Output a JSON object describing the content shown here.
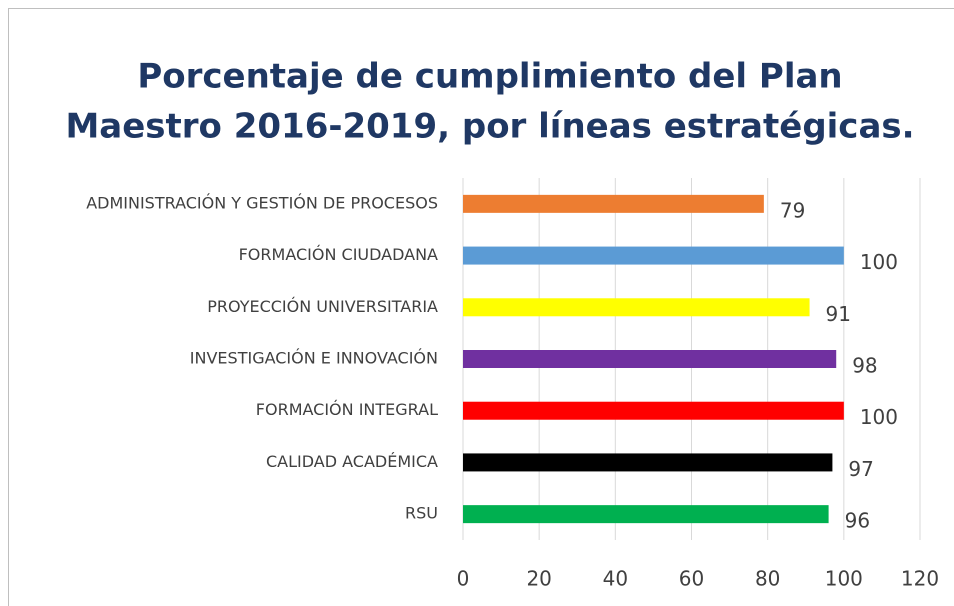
{
  "chart_data": {
    "type": "bar",
    "orientation": "horizontal",
    "title": [
      "Porcentaje de cumplimiento del Plan",
      "Maestro 2016-2019, por líneas estratégicas."
    ],
    "categories": [
      "ADMINISTRACIÓN Y GESTIÓN DE PROCESOS",
      "FORMACIÓN CIUDADANA",
      "PROYECCIÓN UNIVERSITARIA",
      "INVESTIGACIÓN E INNOVACIÓN",
      "FORMACIÓN INTEGRAL",
      "CALIDAD ACADÉMICA",
      "RSU"
    ],
    "values": [
      79,
      100,
      91,
      98,
      100,
      97,
      96
    ],
    "colors": [
      "#ed7d31",
      "#5b9bd5",
      "#ffff00",
      "#7030a0",
      "#ff0000",
      "#000000",
      "#00b050"
    ],
    "xlim": [
      0,
      120
    ],
    "xticks": [
      0,
      20,
      40,
      60,
      80,
      100,
      120
    ],
    "grid": true
  }
}
